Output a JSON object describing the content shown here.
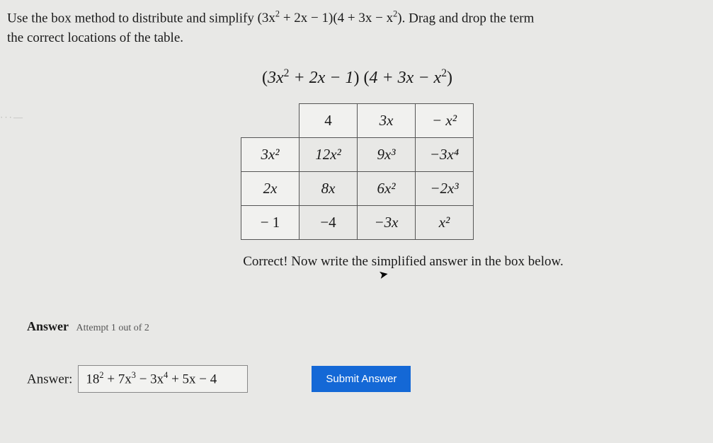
{
  "prompt_line1": "Use the box method to distribute and simplify ",
  "prompt_expr_a": "(3x",
  "prompt_expr_a2": " + 2x − 1)(4 + 3x − x",
  "prompt_expr_a3": ")",
  "prompt_line1b": ". Drag and drop the term",
  "prompt_line2": "the correct locations of the table.",
  "main_expr_open1": "(",
  "main_expr_p1": "3x",
  "main_expr_p1b": " + 2x − 1",
  "main_expr_close1": ") (",
  "main_expr_p2": "4 + 3x − x",
  "main_expr_close2": ")",
  "table": {
    "col_headers": [
      "4",
      "3x",
      "− x²"
    ],
    "row_headers": [
      "3x²",
      "2x",
      "− 1"
    ],
    "cells": [
      [
        "12x²",
        "9x³",
        "−3x⁴"
      ],
      [
        "8x",
        "6x²",
        "−2x³"
      ],
      [
        "−4",
        "−3x",
        "x²"
      ]
    ],
    "border_color": "#555555",
    "header_bg": "#f1f1ef",
    "cell_bg": "#e8e8e6",
    "font_size": 21
  },
  "feedback": "Correct! Now write the simplified answer in the box below.",
  "answer_label": "Answer",
  "attempts": "Attempt 1 out of 2",
  "answer_prefix": "Answer:",
  "answer_value_parts": {
    "t1": "18",
    "t2": " + 7x",
    "t3": " − 3x",
    "t4": " + 5x − 4"
  },
  "submit_label": "Submit Answer",
  "colors": {
    "background": "#e8e8e6",
    "text": "#1a1a1a",
    "button_bg": "#1468d6",
    "button_text": "#ffffff",
    "input_border": "#888888"
  }
}
